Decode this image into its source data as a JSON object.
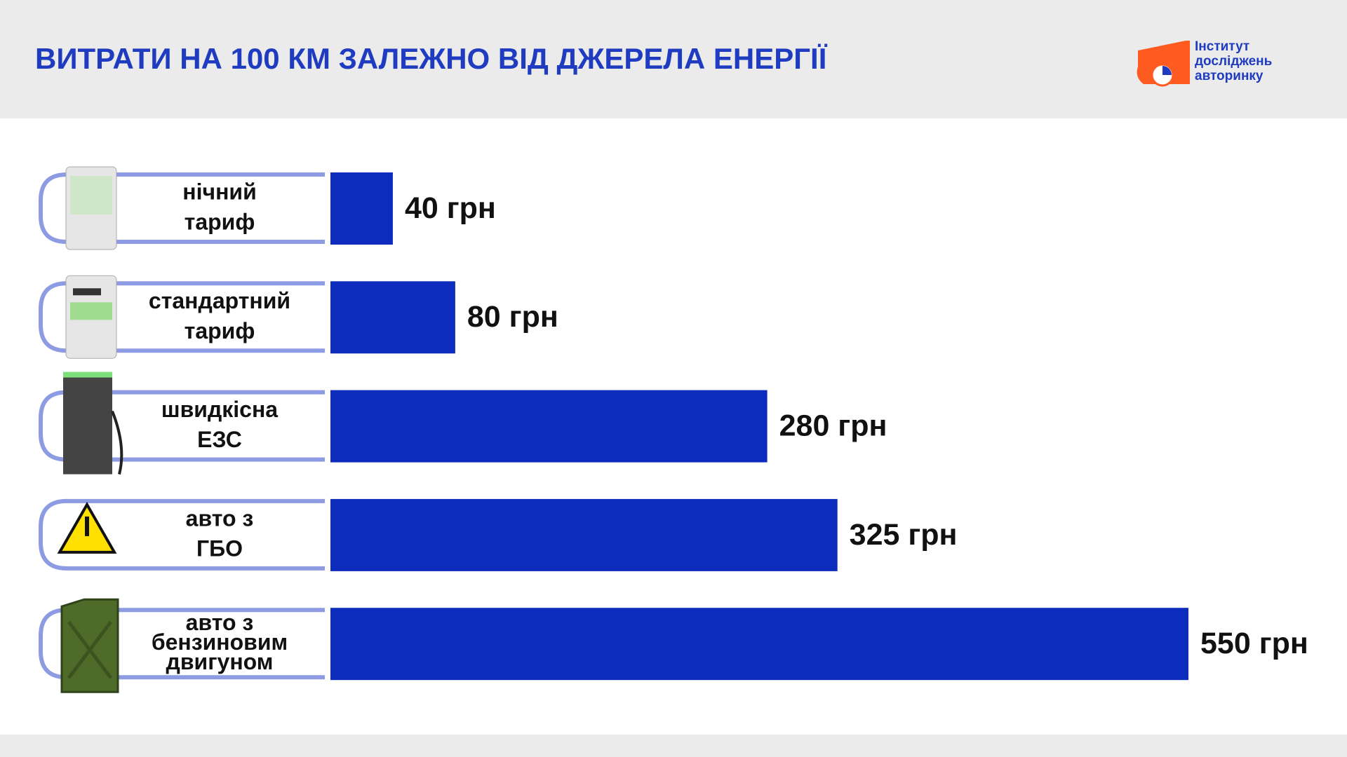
{
  "chart_data": {
    "type": "barh",
    "title": "ВИТРАТИ НА 100 КМ ЗАЛЕЖНО ВІД ДЖЕРЕЛА ЕНЕРГІЇ",
    "logo": [
      "Інститут",
      "досліджень",
      "авторинку"
    ],
    "categories": [
      [
        "нічний",
        "тариф"
      ],
      [
        "стандартний",
        "тариф"
      ],
      [
        "швидкісна",
        "ЕЗС"
      ],
      [
        "авто з",
        "ГБО"
      ],
      [
        "авто з",
        "бензиновим",
        "двигуном"
      ]
    ],
    "values": [
      40,
      80,
      280,
      325,
      550
    ],
    "value_labels": [
      "40 грн",
      "80 грн",
      "280 грн",
      "325 грн",
      "550 грн"
    ],
    "color": "#0d2bbd"
  }
}
